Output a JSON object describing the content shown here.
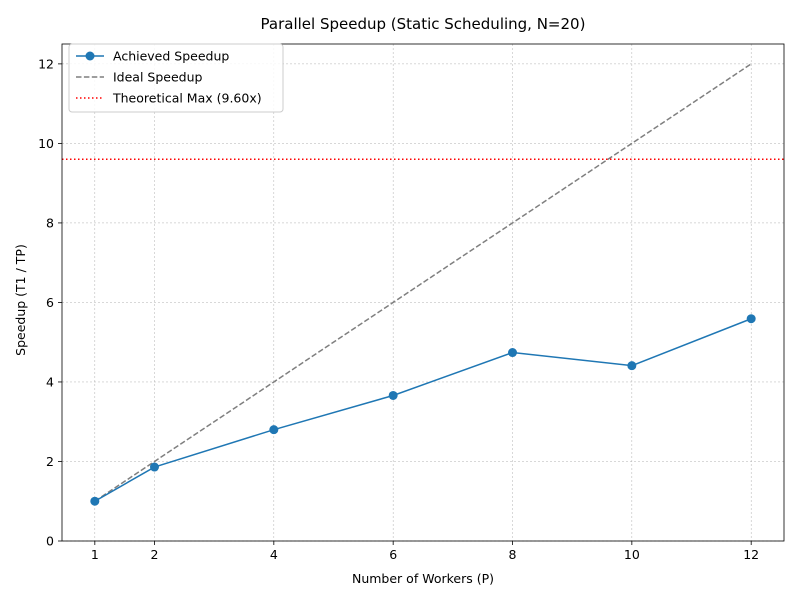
{
  "chart_data": {
    "type": "line",
    "title": "Parallel Speedup (Static Scheduling, N=20)",
    "xlabel": "Number of Workers (P)",
    "ylabel": "Speedup (T1 / TP)",
    "xlim": [
      0.45,
      12.55
    ],
    "ylim": [
      0,
      12.5
    ],
    "xticks": [
      1,
      2,
      4,
      6,
      8,
      10,
      12
    ],
    "yticks": [
      0,
      2,
      4,
      6,
      8,
      10,
      12
    ],
    "grid": true,
    "legend_position": "top-left",
    "series": [
      {
        "name": "Achieved Speedup",
        "style": "solid-with-markers",
        "color": "#1f77b4",
        "x": [
          1,
          2,
          4,
          6,
          8,
          10,
          12
        ],
        "y": [
          1.0,
          1.86,
          2.8,
          3.66,
          4.74,
          4.41,
          5.59
        ]
      },
      {
        "name": "Ideal Speedup",
        "style": "dashed",
        "color": "#7f7f7f",
        "x": [
          1,
          12
        ],
        "y": [
          1,
          12
        ]
      },
      {
        "name": "Theoretical Max (9.60x)",
        "style": "dotted-horizontal",
        "color": "#ff0000",
        "y": 9.6
      }
    ]
  }
}
